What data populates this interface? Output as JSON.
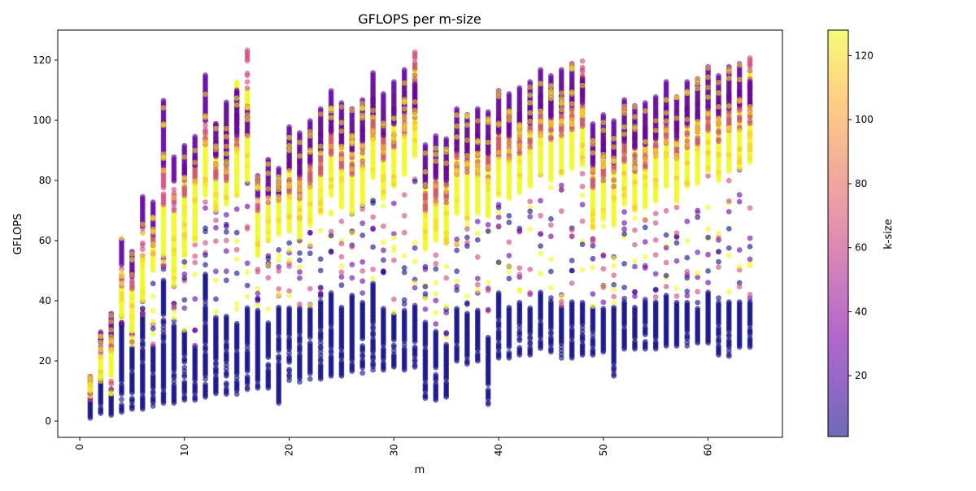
{
  "chart_data": {
    "type": "scatter",
    "title": "GFLOPS per m-size",
    "xlabel": "m",
    "ylabel": "GFLOPS",
    "xlim": [
      -2.1,
      67.1
    ],
    "ylim": [
      -5.4,
      130
    ],
    "xticks": [
      0,
      10,
      20,
      30,
      40,
      50,
      60
    ],
    "yticks": [
      0,
      20,
      40,
      60,
      80,
      100,
      120
    ],
    "grid": false,
    "colorbar": {
      "label": "k-size",
      "colormap": "plasma",
      "range": [
        1,
        128
      ],
      "ticks": [
        20,
        40,
        60,
        80,
        100,
        120
      ],
      "alpha": 0.6
    },
    "column_fields": [
      "m",
      "navy_lo",
      "navy_hi",
      "yellow_lo",
      "yellow_hi",
      "pink_lo",
      "pink_hi",
      "purple_lo",
      "purple_hi"
    ],
    "band_k_values": {
      "navy": 1,
      "yellow": 128,
      "pink": 64,
      "purple": 24
    },
    "columns": [
      [
        1,
        1,
        7,
        10,
        14,
        12,
        15,
        13,
        15
      ],
      [
        2,
        2,
        13,
        14,
        22,
        22,
        28,
        26,
        30
      ],
      [
        3,
        2,
        9,
        15,
        27,
        24,
        30,
        28,
        36
      ],
      [
        4,
        3,
        32,
        35,
        45,
        45,
        52,
        52,
        61
      ],
      [
        5,
        4,
        25,
        30,
        45,
        44,
        50,
        48,
        57
      ],
      [
        6,
        4,
        35,
        40,
        55,
        55,
        65,
        65,
        75
      ],
      [
        7,
        5,
        25,
        50,
        62,
        55,
        62,
        62,
        73
      ],
      [
        8,
        6,
        47,
        55,
        72,
        72,
        85,
        85,
        107
      ],
      [
        9,
        6,
        32,
        45,
        70,
        70,
        80,
        80,
        88
      ],
      [
        10,
        7,
        30,
        55,
        80,
        75,
        85,
        82,
        92
      ],
      [
        11,
        7,
        25,
        60,
        85,
        78,
        88,
        85,
        95
      ],
      [
        12,
        8,
        49,
        75,
        95,
        92,
        100,
        100,
        115
      ],
      [
        13,
        8,
        35,
        70,
        95,
        80,
        99,
        88,
        99
      ],
      [
        14,
        9,
        35,
        72,
        105,
        80,
        100,
        85,
        106
      ],
      [
        15,
        9,
        33,
        75,
        113,
        90,
        110,
        95,
        110
      ],
      [
        16,
        10,
        38,
        80,
        110,
        110,
        124,
        95,
        105
      ],
      [
        17,
        11,
        37,
        55,
        70,
        70,
        75,
        75,
        82
      ],
      [
        18,
        11,
        33,
        60,
        72,
        72,
        78,
        75,
        87
      ],
      [
        19,
        6,
        38,
        62,
        75,
        72,
        78,
        75,
        84
      ],
      [
        20,
        13,
        38,
        63,
        93,
        76,
        90,
        84,
        98
      ],
      [
        21,
        13,
        38,
        61,
        91,
        74,
        88,
        82,
        96
      ],
      [
        22,
        14,
        38,
        65,
        95,
        78,
        92,
        86,
        100
      ],
      [
        23,
        14,
        40,
        69,
        99,
        82,
        96,
        90,
        104
      ],
      [
        24,
        15,
        43,
        75,
        105,
        88,
        102,
        96,
        110
      ],
      [
        25,
        15,
        38,
        71,
        101,
        84,
        98,
        92,
        106
      ],
      [
        26,
        16,
        42,
        69,
        99,
        82,
        96,
        90,
        104
      ],
      [
        27,
        16,
        40,
        72,
        102,
        85,
        99,
        93,
        107
      ],
      [
        28,
        17,
        46,
        81,
        111,
        94,
        108,
        102,
        116
      ],
      [
        29,
        17,
        38,
        74,
        104,
        87,
        101,
        95,
        109
      ],
      [
        30,
        18,
        36,
        78,
        108,
        91,
        105,
        99,
        113
      ],
      [
        31,
        17,
        37,
        82,
        112,
        95,
        109,
        103,
        117
      ],
      [
        32,
        18,
        39,
        88,
        118,
        101,
        123,
        103,
        112
      ],
      [
        33,
        7,
        33,
        57,
        87,
        70,
        84,
        78,
        92
      ],
      [
        34,
        7,
        30,
        60,
        90,
        73,
        87,
        81,
        95
      ],
      [
        35,
        8,
        26,
        59,
        89,
        72,
        86,
        80,
        94
      ],
      [
        36,
        20,
        38,
        69,
        99,
        82,
        96,
        90,
        104
      ],
      [
        37,
        19,
        36,
        67,
        97,
        80,
        94,
        88,
        102
      ],
      [
        38,
        20,
        37,
        69,
        99,
        82,
        96,
        90,
        104
      ],
      [
        39,
        5,
        28,
        68,
        98,
        81,
        95,
        89,
        103
      ],
      [
        40,
        21,
        43,
        75,
        105,
        88,
        102,
        96,
        110
      ],
      [
        41,
        21,
        38,
        74,
        104,
        87,
        101,
        95,
        109
      ],
      [
        42,
        22,
        40,
        76,
        106,
        89,
        103,
        97,
        111
      ],
      [
        43,
        22,
        38,
        78,
        108,
        91,
        105,
        99,
        113
      ],
      [
        44,
        23,
        43,
        82,
        112,
        95,
        109,
        103,
        117
      ],
      [
        45,
        23,
        40,
        80,
        110,
        93,
        107,
        101,
        115
      ],
      [
        46,
        21,
        38,
        82,
        112,
        95,
        109,
        103,
        117
      ],
      [
        47,
        21,
        40,
        84,
        114,
        97,
        111,
        105,
        119
      ],
      [
        48,
        22,
        40,
        85,
        115,
        98,
        120,
        106,
        114
      ],
      [
        49,
        22,
        38,
        64,
        94,
        77,
        91,
        85,
        99
      ],
      [
        50,
        23,
        38,
        67,
        97,
        80,
        94,
        88,
        102
      ],
      [
        51,
        15,
        38,
        65,
        95,
        78,
        92,
        86,
        100
      ],
      [
        52,
        24,
        40,
        72,
        102,
        85,
        99,
        93,
        107
      ],
      [
        53,
        24,
        38,
        70,
        100,
        83,
        97,
        91,
        105
      ],
      [
        54,
        24,
        40,
        71,
        101,
        84,
        98,
        92,
        106
      ],
      [
        55,
        24,
        40,
        73,
        103,
        86,
        100,
        94,
        108
      ],
      [
        56,
        25,
        42,
        78,
        108,
        91,
        105,
        99,
        113
      ],
      [
        57,
        25,
        40,
        73,
        103,
        86,
        100,
        94,
        108
      ],
      [
        58,
        25,
        40,
        78,
        108,
        91,
        105,
        99,
        113
      ],
      [
        59,
        26,
        38,
        79,
        109,
        92,
        106,
        100,
        114
      ],
      [
        60,
        26,
        43,
        83,
        113,
        96,
        110,
        104,
        118
      ],
      [
        61,
        22,
        40,
        80,
        110,
        93,
        107,
        101,
        115
      ],
      [
        62,
        21,
        40,
        83,
        113,
        96,
        110,
        104,
        118
      ],
      [
        63,
        24,
        40,
        84,
        114,
        97,
        111,
        105,
        119
      ],
      [
        64,
        24,
        40,
        86,
        116,
        99,
        121,
        105,
        113
      ]
    ]
  }
}
